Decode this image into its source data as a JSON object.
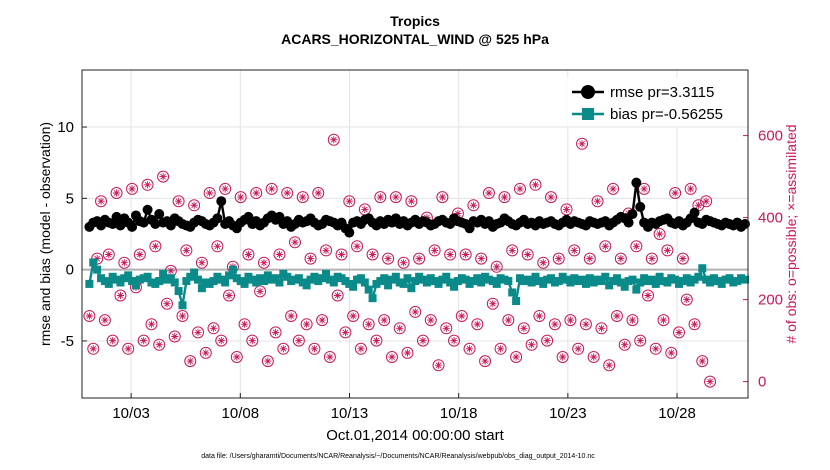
{
  "chart_data": {
    "type": "line",
    "title": "Tropics",
    "subtitle": "ACARS_HORIZONTAL_WIND @ 525 hPa",
    "xlabel": "Oct.01,2014 00:00:00 start",
    "ylabel_left": "rmse and bias (model - observation)",
    "ylabel_right": "# of obs: o=possible; ×=assimilated",
    "footer": "data file: /Users/gharamti/Documents/NCAR/Reanalysis/~/Documents/NCAR/Reanalysis/webpub/obs_diag_output_2014-10.nc",
    "x_tick_labels": [
      "10/03",
      "10/08",
      "10/13",
      "10/18",
      "10/23",
      "10/28"
    ],
    "x_tick_days": [
      3,
      8,
      13,
      18,
      23,
      28
    ],
    "xlim": [
      0.75,
      31.25
    ],
    "ylim_left": [
      -9,
      14
    ],
    "yticks_left": [
      -5,
      0,
      5,
      10
    ],
    "ylim_right": [
      -40,
      760
    ],
    "yticks_right": [
      0,
      200,
      400,
      600
    ],
    "zero_line": 0,
    "grid": true,
    "legend_position": "top-right",
    "colors": {
      "rmse": "#000000",
      "bias": "#0b8a8a",
      "obs": "#c8195a",
      "zero": "#b0b0b0"
    },
    "series": [
      {
        "name": "rmse pr=3.3115",
        "key": "rmse",
        "axis": "left",
        "values": [
          3.0,
          3.3,
          3.4,
          3.1,
          3.5,
          3.3,
          3.2,
          3.7,
          3.1,
          3.6,
          3.3,
          3.0,
          3.8,
          3.4,
          3.3,
          4.2,
          3.5,
          3.2,
          3.9,
          3.3,
          3.4,
          3.1,
          3.6,
          3.4,
          3.2,
          3.1,
          3.0,
          3.3,
          3.5,
          3.4,
          3.2,
          3.1,
          3.3,
          3.6,
          4.8,
          3.2,
          3.4,
          3.1,
          2.9,
          3.3,
          3.5,
          3.7,
          3.2,
          3.4,
          3.1,
          3.3,
          3.6,
          3.8,
          3.5,
          3.7,
          3.2,
          3.4,
          3.0,
          3.2,
          3.5,
          3.3,
          3.4,
          3.6,
          3.3,
          3.1,
          3.2,
          3.5,
          3.4,
          3.3,
          3.1,
          3.3,
          2.9,
          2.6,
          3.3,
          3.4,
          3.2,
          3.5,
          3.6,
          3.3,
          3.1,
          3.4,
          3.2,
          3.5,
          3.3,
          3.6,
          3.2,
          3.4,
          3.1,
          3.3,
          3.5,
          3.2,
          3.4,
          3.3,
          3.1,
          3.2,
          3.4,
          3.5,
          3.3,
          3.2,
          3.6,
          3.4,
          3.3,
          3.2,
          2.9,
          3.4,
          3.3,
          3.5,
          3.2,
          3.4,
          3.0,
          3.2,
          3.3,
          3.6,
          3.4,
          3.2,
          3.1,
          3.3,
          3.5,
          3.2,
          3.3,
          3.1,
          3.4,
          3.2,
          3.3,
          3.4,
          3.2,
          3.1,
          3.3,
          3.5,
          3.2,
          3.4,
          3.3,
          3.2,
          3.1,
          3.4,
          3.3,
          3.2,
          3.3,
          3.4,
          3.1,
          3.3,
          3.5,
          3.7,
          3.6,
          3.3,
          3.9,
          6.1,
          4.4,
          3.3,
          3.0,
          3.3,
          3.2,
          3.4,
          3.5,
          3.6,
          3.3,
          3.2,
          3.4,
          3.1,
          3.3,
          3.6,
          4.0,
          3.3,
          3.2,
          3.5,
          3.4,
          3.3,
          3.2,
          3.1,
          3.3,
          3.2,
          3.1,
          3.3,
          3.0,
          3.2
        ]
      },
      {
        "name": "bias pr=-0.56255",
        "key": "bias",
        "axis": "left",
        "values": [
          -1.0,
          0.5,
          0.0,
          -0.6,
          -0.8,
          -1.0,
          -0.5,
          -0.7,
          -0.9,
          -0.6,
          -0.4,
          -0.8,
          -1.1,
          -0.7,
          -0.6,
          -0.5,
          -0.9,
          -1.0,
          -0.8,
          -0.3,
          -0.7,
          -0.6,
          -0.9,
          -1.5,
          -2.5,
          -0.8,
          -0.5,
          -0.2,
          -0.7,
          -1.3,
          -0.9,
          -1.0,
          -0.8,
          -0.5,
          -0.7,
          -0.9,
          -0.4,
          0.0,
          -0.6,
          -0.8,
          -1.0,
          -0.5,
          -0.7,
          -0.9,
          -0.6,
          -0.8,
          -0.4,
          -0.7,
          -0.6,
          -0.9,
          -0.3,
          -0.5,
          -0.8,
          -0.7,
          -0.6,
          -0.9,
          -1.1,
          -0.7,
          -0.5,
          -0.8,
          -0.6,
          -0.3,
          -0.7,
          -0.9,
          -0.5,
          -0.6,
          -0.8,
          -1.0,
          -1.2,
          -0.7,
          -0.6,
          -0.9,
          -1.4,
          -2.0,
          -1.0,
          -0.8,
          -0.6,
          -1.1,
          -0.7,
          -0.5,
          -0.9,
          -1.0,
          -0.6,
          -1.3,
          -0.8,
          -0.5,
          -0.7,
          -0.9,
          -0.6,
          -0.8,
          -1.0,
          -0.7,
          -0.5,
          -0.9,
          -1.2,
          -0.8,
          -0.6,
          -0.7,
          -1.0,
          -0.8,
          -0.6,
          -0.9,
          -0.5,
          -0.7,
          -0.8,
          -1.0,
          -0.6,
          -0.7,
          -0.8,
          -1.6,
          -2.2,
          -0.6,
          -0.8,
          -0.7,
          -0.9,
          -0.5,
          -0.8,
          -1.0,
          -0.7,
          -0.6,
          -0.9,
          -0.8,
          -0.5,
          -0.7,
          -0.9,
          -0.6,
          -0.8,
          -0.7,
          -1.0,
          -0.6,
          -0.9,
          -0.7,
          -0.8,
          -0.5,
          -1.1,
          -0.8,
          -0.6,
          -0.9,
          -1.2,
          -0.8,
          -0.7,
          -1.4,
          -0.9,
          -0.6,
          -0.8,
          -0.7,
          -1.0,
          -0.5,
          -0.8,
          -0.9,
          -0.6,
          -0.7,
          -1.0,
          -0.8,
          -0.6,
          -0.9,
          -0.7,
          -0.5,
          0.1,
          -0.7,
          -0.9,
          -0.6,
          -0.8,
          -1.0,
          -0.7,
          -0.6,
          -0.9,
          -0.8,
          -0.6,
          -0.7
        ]
      },
      {
        "name": "obs possible / assimilated",
        "key": "obs",
        "axis": "right",
        "values": [
          160,
          80,
          300,
          440,
          150,
          310,
          100,
          460,
          210,
          290,
          80,
          470,
          230,
          310,
          100,
          480,
          140,
          330,
          90,
          500,
          190,
          270,
          110,
          440,
          160,
          320,
          50,
          430,
          120,
          290,
          70,
          460,
          130,
          330,
          100,
          470,
          210,
          280,
          60,
          450,
          140,
          310,
          100,
          460,
          220,
          290,
          50,
          470,
          120,
          310,
          80,
          460,
          160,
          340,
          100,
          450,
          140,
          300,
          80,
          460,
          150,
          320,
          60,
          590,
          210,
          310,
          120,
          440,
          160,
          330,
          80,
          420,
          140,
          310,
          100,
          450,
          150,
          300,
          60,
          450,
          130,
          290,
          70,
          440,
          170,
          300,
          100,
          400,
          150,
          320,
          40,
          450,
          130,
          310,
          100,
          410,
          160,
          310,
          80,
          430,
          140,
          300,
          50,
          460,
          190,
          280,
          80,
          450,
          150,
          320,
          60,
          470,
          130,
          310,
          90,
          480,
          160,
          290,
          100,
          450,
          140,
          300,
          60,
          420,
          150,
          320,
          80,
          580,
          140,
          300,
          60,
          440,
          130,
          330,
          40,
          470,
          160,
          300,
          90,
          410,
          150,
          330,
          100,
          470,
          210,
          300,
          80,
          360,
          150,
          320,
          70,
          460,
          120,
          300,
          200,
          470,
          140,
          430,
          50,
          440,
          0
        ]
      }
    ]
  }
}
